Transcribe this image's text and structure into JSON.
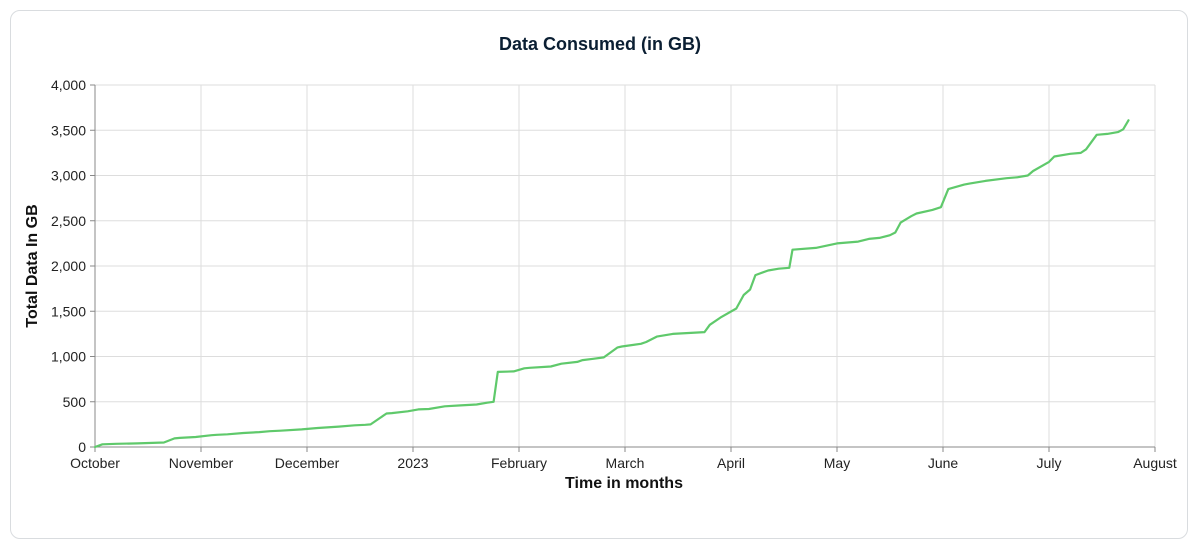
{
  "chart_data": {
    "type": "line",
    "title": "Data Consumed (in GB)",
    "xlabel": "Time in months",
    "ylabel": "Total Data In GB",
    "x_ticks": [
      "October",
      "November",
      "December",
      "2023",
      "February",
      "March",
      "April",
      "May",
      "June",
      "July",
      "August"
    ],
    "x_unit": "months since October (0 = October, 10 = August)",
    "y_ticks": [
      "0",
      "500",
      "1,000",
      "1,500",
      "2,000",
      "2,500",
      "3,000",
      "3,500",
      "4,000"
    ],
    "ylim": [
      0,
      4000
    ],
    "xlim": [
      0,
      10
    ],
    "grid": true,
    "series": [
      {
        "name": "Total Data In GB",
        "color": "#5fc96b",
        "x": [
          0.0,
          0.07,
          0.2,
          0.4,
          0.65,
          0.75,
          0.8,
          0.95,
          1.1,
          1.15,
          1.25,
          1.4,
          1.55,
          1.65,
          1.75,
          1.95,
          2.1,
          2.3,
          2.45,
          2.55,
          2.6,
          2.75,
          2.8,
          2.95,
          3.05,
          3.15,
          3.3,
          3.45,
          3.6,
          3.7,
          3.76,
          3.8,
          3.95,
          4.05,
          4.1,
          4.3,
          4.4,
          4.55,
          4.6,
          4.7,
          4.8,
          4.93,
          4.97,
          5.15,
          5.2,
          5.3,
          5.45,
          5.6,
          5.75,
          5.8,
          5.9,
          6.05,
          6.12,
          6.18,
          6.23,
          6.35,
          6.45,
          6.55,
          6.58,
          6.8,
          7.0,
          7.2,
          7.3,
          7.4,
          7.5,
          7.55,
          7.6,
          7.7,
          7.75,
          7.9,
          7.98,
          8.05,
          8.2,
          8.25,
          8.4,
          8.6,
          8.7,
          8.8,
          8.85,
          9.0,
          9.05,
          9.2,
          9.3,
          9.35,
          9.45,
          9.55,
          9.65,
          9.7,
          9.75
        ],
        "y": [
          0,
          30,
          35,
          40,
          50,
          95,
          100,
          110,
          130,
          135,
          140,
          155,
          165,
          175,
          180,
          195,
          210,
          225,
          240,
          245,
          250,
          370,
          375,
          395,
          415,
          420,
          450,
          460,
          470,
          490,
          500,
          830,
          835,
          870,
          875,
          890,
          920,
          940,
          960,
          975,
          990,
          1100,
          1110,
          1140,
          1160,
          1220,
          1250,
          1260,
          1270,
          1350,
          1430,
          1530,
          1680,
          1740,
          1900,
          1950,
          1970,
          1980,
          2180,
          2200,
          2250,
          2270,
          2300,
          2310,
          2340,
          2370,
          2480,
          2550,
          2580,
          2620,
          2650,
          2850,
          2900,
          2910,
          2940,
          2970,
          2980,
          3000,
          3050,
          3150,
          3210,
          3240,
          3250,
          3290,
          3450,
          3460,
          3480,
          3510,
          3610
        ]
      }
    ]
  }
}
